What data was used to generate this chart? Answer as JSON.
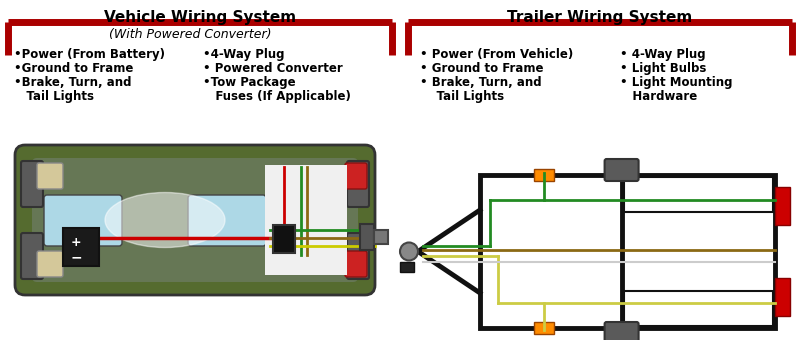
{
  "bg_color": "#ffffff",
  "left_title": "Vehicle Wiring System",
  "right_title": "Trailer Wiring System",
  "left_subtitle": "(With Powered Converter)",
  "left_col1_items": [
    "•Power (From Battery)",
    "•Ground to Frame",
    "•Brake, Turn, and"
  ],
  "left_col1_cont": [
    "",
    "",
    "   Tail Lights"
  ],
  "left_col2_items": [
    "•4-Way Plug",
    "• Powered Converter",
    "•Tow Package"
  ],
  "left_col2_cont": [
    "",
    "",
    "   Fuses (If Applicable)"
  ],
  "right_col1_items": [
    "• Power (From Vehicle)",
    "• Ground to Frame",
    "• Brake, Turn, and"
  ],
  "right_col1_cont": [
    "",
    "",
    "    Tail Lights"
  ],
  "right_col2_items": [
    "• 4-Way Plug",
    "• Light Bulbs",
    "• Light Mounting"
  ],
  "right_col2_cont": [
    "",
    "",
    "   Hardware"
  ],
  "red_color": "#aa0000",
  "dark_green": "#556b2f",
  "mid_green": "#6b7e50",
  "light_blue": "#add8e6",
  "wheel_gray": "#808080",
  "cream": "#d4c89a",
  "wire_red": "#cc0000",
  "wire_green": "#228B22",
  "wire_yellow": "#cccc00",
  "wire_brown": "#8B6914",
  "trailer_black": "#111111",
  "orange_light": "#ff8c00",
  "tail_red": "#cc0000"
}
